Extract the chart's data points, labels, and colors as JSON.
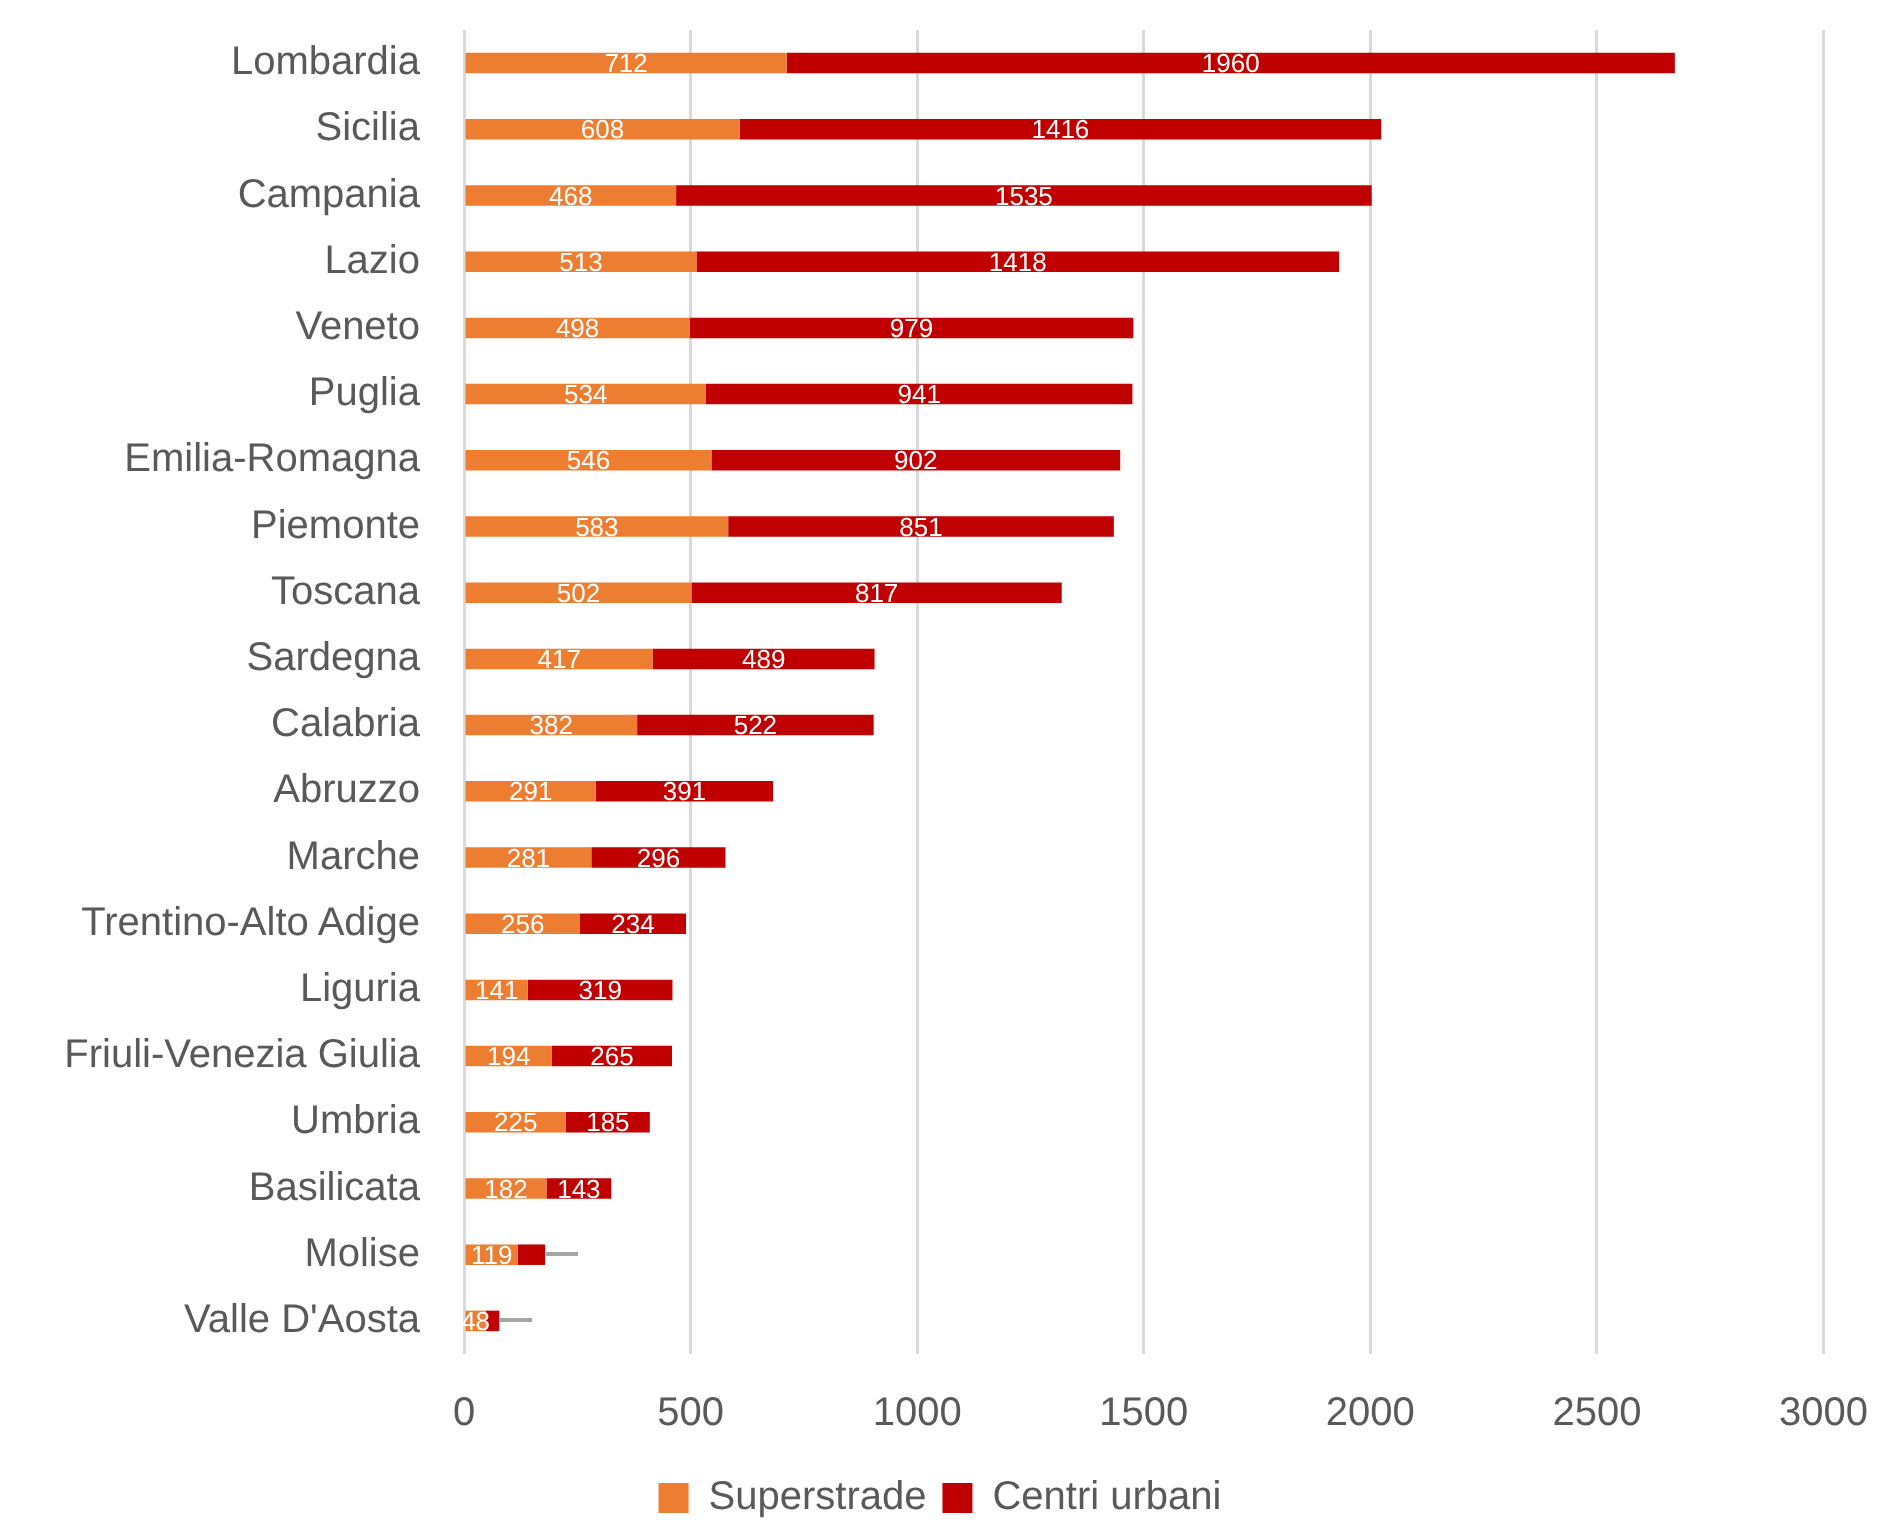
{
  "chart_data": {
    "type": "bar",
    "orientation": "horizontal",
    "stacked": true,
    "categories": [
      "Lombardia",
      "Sicilia",
      "Campania",
      "Lazio",
      "Veneto",
      "Puglia",
      "Emilia-Romagna",
      "Piemonte",
      "Toscana",
      "Sardegna",
      "Calabria",
      "Abruzzo",
      "Marche",
      "Trentino-Alto Adige",
      "Liguria",
      "Friuli-Venezia Giulia",
      "Umbria",
      "Basilicata",
      "Molise",
      "Valle D'Aosta"
    ],
    "series": [
      {
        "name": "Superstrade",
        "color": "#ed7d31",
        "values": [
          712,
          608,
          468,
          513,
          498,
          534,
          546,
          583,
          502,
          417,
          382,
          291,
          281,
          256,
          141,
          194,
          225,
          182,
          119,
          48
        ],
        "value_labels": [
          "712",
          "608",
          "468",
          "513",
          "498",
          "534",
          "546",
          "583",
          "502",
          "417",
          "382",
          "291",
          "281",
          "256",
          "141",
          "194",
          "225",
          "182",
          "119",
          "48"
        ]
      },
      {
        "name": "Centri urbani",
        "color": "#c00000",
        "values": [
          1960,
          1416,
          1535,
          1418,
          979,
          941,
          902,
          851,
          817,
          489,
          522,
          391,
          296,
          234,
          319,
          265,
          185,
          143,
          60,
          30
        ],
        "value_labels": [
          "1960",
          "1416",
          "1535",
          "1418",
          "979",
          "941",
          "902",
          "851",
          "817",
          "489",
          "522",
          "391",
          "296",
          "234",
          "319",
          "265",
          "185",
          "143",
          null,
          null
        ]
      }
    ],
    "xlim": [
      0,
      3000
    ],
    "xticks": [
      0,
      500,
      1000,
      1500,
      2000,
      2500,
      3000
    ],
    "grid": "x",
    "legend": "bottom"
  }
}
